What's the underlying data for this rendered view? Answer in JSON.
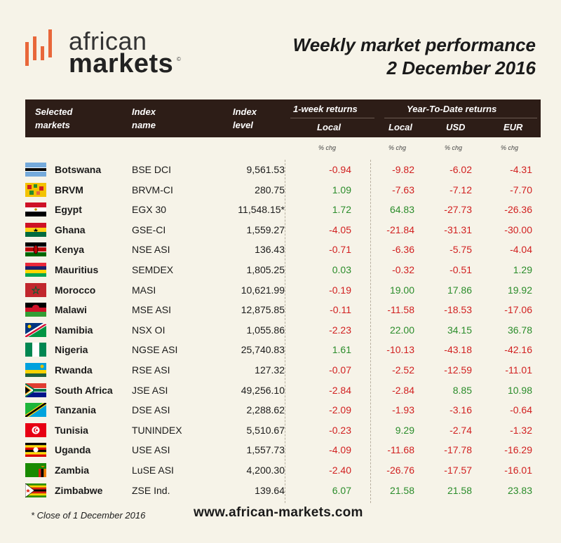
{
  "logo": {
    "word1": "african",
    "word2": "markets",
    "reg": "©"
  },
  "title": {
    "line1": "Weekly market performance",
    "line2": "2 December 2016"
  },
  "header": {
    "col_market": "Selected markets",
    "col_index_name": "Index name",
    "col_index_level": "Index level",
    "group_week": "1-week returns",
    "group_ytd": "Year-To-Date returns",
    "sub_local_week": "Local",
    "sub_local_ytd": "Local",
    "sub_usd": "USD",
    "sub_eur": "EUR",
    "chg": "% chg"
  },
  "rows": [
    {
      "country": "Botswana",
      "index": "BSE DCI",
      "level": "9,561.53",
      "wk": "-0.94",
      "ytd_local": "-9.82",
      "usd": "-6.02",
      "eur": "-4.31"
    },
    {
      "country": "BRVM",
      "index": "BRVM-CI",
      "level": "280.75",
      "wk": "1.09",
      "ytd_local": "-7.63",
      "usd": "-7.12",
      "eur": "-7.70"
    },
    {
      "country": "Egypt",
      "index": "EGX 30",
      "level": "11,548.15*",
      "wk": "1.72",
      "ytd_local": "64.83",
      "usd": "-27.73",
      "eur": "-26.36"
    },
    {
      "country": "Ghana",
      "index": "GSE-CI",
      "level": "1,559.27",
      "wk": "-4.05",
      "ytd_local": "-21.84",
      "usd": "-31.31",
      "eur": "-30.00"
    },
    {
      "country": "Kenya",
      "index": "NSE ASI",
      "level": "136.43",
      "wk": "-0.71",
      "ytd_local": "-6.36",
      "usd": "-5.75",
      "eur": "-4.04"
    },
    {
      "country": "Mauritius",
      "index": "SEMDEX",
      "level": "1,805.25",
      "wk": "0.03",
      "ytd_local": "-0.32",
      "usd": "-0.51",
      "eur": "1.29"
    },
    {
      "country": "Morocco",
      "index": "MASI",
      "level": "10,621.99",
      "wk": "-0.19",
      "ytd_local": "19.00",
      "usd": "17.86",
      "eur": "19.92"
    },
    {
      "country": "Malawi",
      "index": "MSE ASI",
      "level": "12,875.85",
      "wk": "-0.11",
      "ytd_local": "-11.58",
      "usd": "-18.53",
      "eur": "-17.06"
    },
    {
      "country": "Namibia",
      "index": "NSX OI",
      "level": "1,055.86",
      "wk": "-2.23",
      "ytd_local": "22.00",
      "usd": "34.15",
      "eur": "36.78"
    },
    {
      "country": "Nigeria",
      "index": "NGSE ASI",
      "level": "25,740.83",
      "wk": "1.61",
      "ytd_local": "-10.13",
      "usd": "-43.18",
      "eur": "-42.16"
    },
    {
      "country": "Rwanda",
      "index": "RSE ASI",
      "level": "127.32",
      "wk": "-0.07",
      "ytd_local": "-2.52",
      "usd": "-12.59",
      "eur": "-11.01"
    },
    {
      "country": "South Africa",
      "index": "JSE ASI",
      "level": "49,256.10",
      "wk": "-2.84",
      "ytd_local": "-2.84",
      "usd": "8.85",
      "eur": "10.98"
    },
    {
      "country": "Tanzania",
      "index": "DSE ASI",
      "level": "2,288.62",
      "wk": "-2.09",
      "ytd_local": "-1.93",
      "usd": "-3.16",
      "eur": "-0.64"
    },
    {
      "country": "Tunisia",
      "index": "TUNINDEX",
      "level": "5,510.67",
      "wk": "-0.23",
      "ytd_local": "9.29",
      "usd": "-2.74",
      "eur": "-1.32"
    },
    {
      "country": "Uganda",
      "index": "USE ASI",
      "level": "1,557.73",
      "wk": "-4.09",
      "ytd_local": "-11.68",
      "usd": "-17.78",
      "eur": "-16.29"
    },
    {
      "country": "Zambia",
      "index": "LuSE ASI",
      "level": "4,200.30",
      "wk": "-2.40",
      "ytd_local": "-26.76",
      "usd": "-17.57",
      "eur": "-16.01"
    },
    {
      "country": "Zimbabwe",
      "index": "ZSE Ind.",
      "level": "139.64",
      "wk": "6.07",
      "ytd_local": "21.58",
      "usd": "21.58",
      "eur": "23.83"
    }
  ],
  "footer": {
    "note": "* Close of 1 December 2016",
    "url": "www.african-markets.com"
  },
  "colors": {
    "header_bg": "#2d1d17",
    "accent": "#e8673a",
    "negative": "#d11f1f",
    "positive": "#2a8c2a",
    "background": "#f6f3e8"
  }
}
